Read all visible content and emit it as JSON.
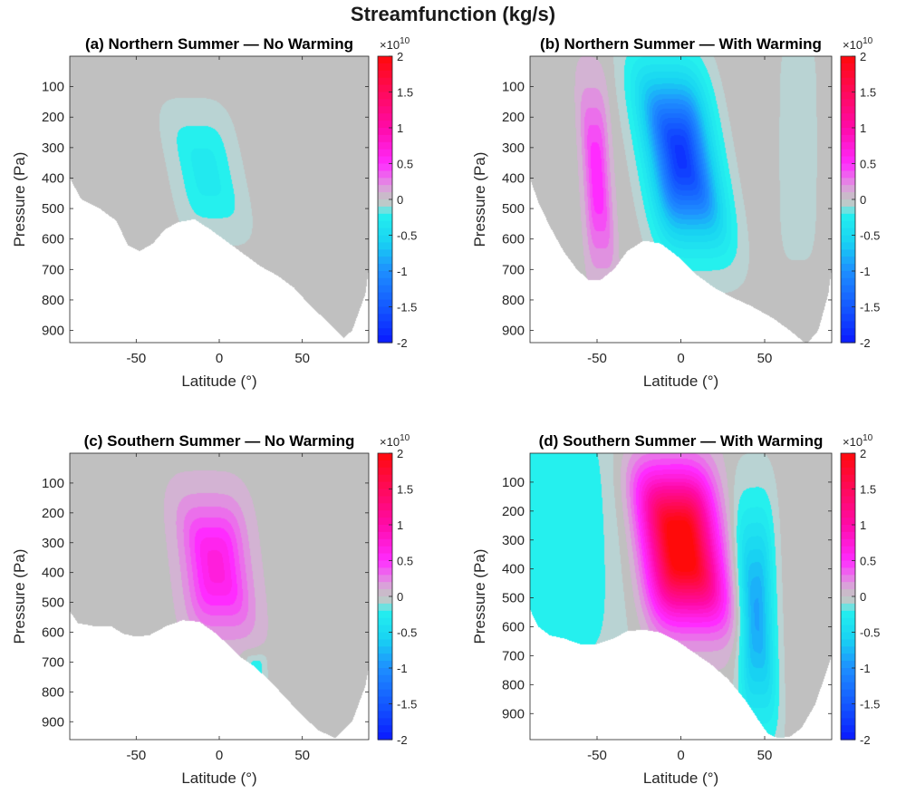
{
  "figure_title": "Streamfunction (kg/s)",
  "colormap": {
    "stops": [
      {
        "v": -2.0,
        "c": "#0a1aff"
      },
      {
        "v": -1.5,
        "c": "#1459ff"
      },
      {
        "v": -1.0,
        "c": "#1e8fff"
      },
      {
        "v": -0.6,
        "c": "#18d2f2"
      },
      {
        "v": -0.2,
        "c": "#25f0ee"
      },
      {
        "v": -0.1,
        "c": "#b9d3d3"
      },
      {
        "v": 0.0,
        "c": "#c0c0c0"
      },
      {
        "v": 0.1,
        "c": "#d3b3d3"
      },
      {
        "v": 0.25,
        "c": "#e680e6"
      },
      {
        "v": 0.5,
        "c": "#ff2bff"
      },
      {
        "v": 1.0,
        "c": "#ff0aa8"
      },
      {
        "v": 1.5,
        "c": "#ff0a5a"
      },
      {
        "v": 2.0,
        "c": "#ff0a0a"
      }
    ],
    "exponent_label": "×10",
    "exponent_power": "10",
    "tick_labels": [
      "2",
      "1.5",
      "1",
      "0.5",
      "0",
      "-0.5",
      "-1",
      "-1.5",
      "-2"
    ]
  },
  "chart_data": [
    {
      "id": "a",
      "type": "heatmap",
      "title": "(a) Northern Summer — No Warming",
      "xlabel": "Latitude (°)",
      "ylabel": "Pressure (Pa)",
      "xlim": [
        -90,
        90
      ],
      "ylim": [
        940,
        0
      ],
      "xticks": [
        -50,
        0,
        50
      ],
      "yticks": [
        100,
        200,
        300,
        400,
        500,
        600,
        700,
        800,
        900
      ],
      "clim": [
        -2,
        2
      ],
      "value_scale": "1e10",
      "surface": [
        [
          -90,
          400
        ],
        [
          -83,
          470
        ],
        [
          -72,
          500
        ],
        [
          -62,
          540
        ],
        [
          -55,
          620
        ],
        [
          -48,
          640
        ],
        [
          -40,
          615
        ],
        [
          -33,
          570
        ],
        [
          -25,
          545
        ],
        [
          -15,
          535
        ],
        [
          -5,
          570
        ],
        [
          5,
          610
        ],
        [
          15,
          650
        ],
        [
          25,
          690
        ],
        [
          35,
          720
        ],
        [
          45,
          760
        ],
        [
          55,
          820
        ],
        [
          65,
          870
        ],
        [
          75,
          925
        ],
        [
          80,
          900
        ],
        [
          88,
          780
        ],
        [
          90,
          700
        ]
      ],
      "cells": [
        {
          "lat": -8,
          "p": 380,
          "peak": -0.3,
          "rx": 22,
          "ry": 230,
          "tilt": 0.35
        }
      ]
    },
    {
      "id": "b",
      "type": "heatmap",
      "title": "(b) Northern Summer — With Warming",
      "xlabel": "Latitude (°)",
      "ylabel": "Pressure (Pa)",
      "xlim": [
        -90,
        90
      ],
      "ylim": [
        940,
        0
      ],
      "xticks": [
        -50,
        0,
        50
      ],
      "yticks": [
        100,
        200,
        300,
        400,
        500,
        600,
        700,
        800,
        900
      ],
      "clim": [
        -2,
        2
      ],
      "value_scale": "1e10",
      "surface": [
        [
          -90,
          400
        ],
        [
          -85,
          480
        ],
        [
          -78,
          560
        ],
        [
          -70,
          640
        ],
        [
          -62,
          700
        ],
        [
          -55,
          735
        ],
        [
          -48,
          735
        ],
        [
          -40,
          700
        ],
        [
          -32,
          640
        ],
        [
          -22,
          605
        ],
        [
          -12,
          615
        ],
        [
          0,
          665
        ],
        [
          10,
          720
        ],
        [
          20,
          760
        ],
        [
          30,
          790
        ],
        [
          42,
          820
        ],
        [
          55,
          860
        ],
        [
          65,
          900
        ],
        [
          75,
          945
        ],
        [
          82,
          900
        ],
        [
          88,
          780
        ],
        [
          90,
          700
        ]
      ],
      "cells": [
        {
          "lat": -50,
          "p": 400,
          "peak": 0.55,
          "rx": 9,
          "ry": 330,
          "tilt": 0.1
        },
        {
          "lat": 0,
          "p": 330,
          "peak": -1.8,
          "rx": 22,
          "ry": 300,
          "tilt": 0.3
        },
        {
          "lat": 70,
          "p": 300,
          "peak": -0.12,
          "rx": 15,
          "ry": 500,
          "tilt": 0.0
        }
      ]
    },
    {
      "id": "c",
      "type": "heatmap",
      "title": "(c) Southern Summer — No Warming",
      "xlabel": "Latitude (°)",
      "ylabel": "Pressure (Pa)",
      "xlim": [
        -90,
        90
      ],
      "ylim": [
        960,
        0
      ],
      "xticks": [
        -50,
        0,
        50
      ],
      "yticks": [
        100,
        200,
        300,
        400,
        500,
        600,
        700,
        800,
        900
      ],
      "clim": [
        -2,
        2
      ],
      "value_scale": "1e10",
      "surface": [
        [
          -90,
          530
        ],
        [
          -85,
          570
        ],
        [
          -75,
          580
        ],
        [
          -65,
          580
        ],
        [
          -58,
          605
        ],
        [
          -50,
          615
        ],
        [
          -42,
          610
        ],
        [
          -32,
          580
        ],
        [
          -22,
          560
        ],
        [
          -12,
          565
        ],
        [
          -3,
          600
        ],
        [
          5,
          640
        ],
        [
          12,
          680
        ],
        [
          20,
          710
        ],
        [
          30,
          760
        ],
        [
          40,
          820
        ],
        [
          50,
          880
        ],
        [
          60,
          930
        ],
        [
          70,
          955
        ],
        [
          80,
          900
        ],
        [
          88,
          780
        ],
        [
          90,
          720
        ]
      ],
      "cells": [
        {
          "lat": -2,
          "p": 380,
          "peak": 0.7,
          "rx": 22,
          "ry": 250,
          "tilt": 0.2
        },
        {
          "lat": 22,
          "p": 720,
          "peak": -0.25,
          "rx": 8,
          "ry": 60,
          "tilt": 0.0
        }
      ]
    },
    {
      "id": "d",
      "type": "heatmap",
      "title": "(d) Southern Summer — With Warming",
      "xlabel": "Latitude (°)",
      "ylabel": "Pressure (Pa)",
      "xlim": [
        -90,
        90
      ],
      "ylim": [
        990,
        0
      ],
      "xticks": [
        -50,
        0,
        50
      ],
      "yticks": [
        100,
        200,
        300,
        400,
        500,
        600,
        700,
        800,
        900
      ],
      "clim": [
        -2,
        2
      ],
      "value_scale": "1e10",
      "surface": [
        [
          -90,
          540
        ],
        [
          -85,
          600
        ],
        [
          -78,
          630
        ],
        [
          -70,
          640
        ],
        [
          -60,
          660
        ],
        [
          -50,
          660
        ],
        [
          -40,
          640
        ],
        [
          -32,
          615
        ],
        [
          -22,
          610
        ],
        [
          -12,
          620
        ],
        [
          -2,
          650
        ],
        [
          8,
          690
        ],
        [
          18,
          730
        ],
        [
          28,
          780
        ],
        [
          38,
          850
        ],
        [
          46,
          920
        ],
        [
          52,
          970
        ],
        [
          58,
          985
        ],
        [
          65,
          980
        ],
        [
          72,
          950
        ],
        [
          80,
          870
        ],
        [
          86,
          770
        ],
        [
          90,
          700
        ]
      ],
      "cells": [
        {
          "lat": 0,
          "p": 320,
          "peak": 2.3,
          "rx": 24,
          "ry": 280,
          "tilt": 0.25
        },
        {
          "lat": 45,
          "p": 560,
          "peak": -0.9,
          "rx": 12,
          "ry": 420,
          "tilt": 0.05
        },
        {
          "lat": -70,
          "p": 300,
          "peak": -0.25,
          "rx": 45,
          "ry": 700,
          "tilt": 0.0
        }
      ]
    }
  ]
}
